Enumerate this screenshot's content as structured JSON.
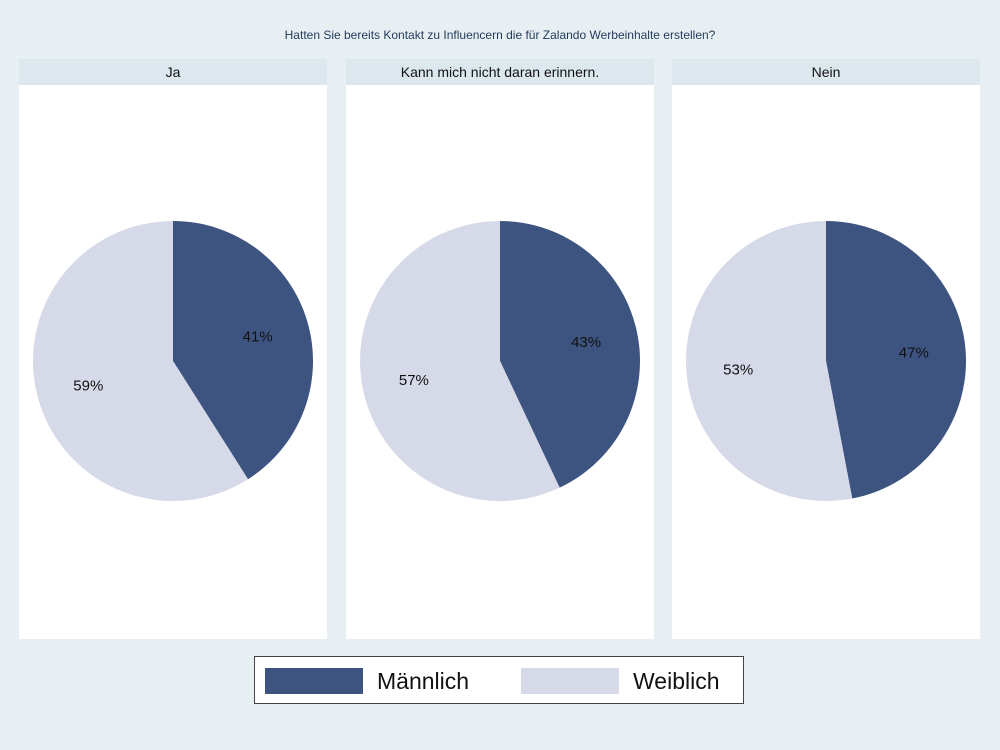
{
  "chart_data": {
    "type": "pie",
    "title": "Hatten Sie bereits Kontakt zu Influencern die für Zalando Werbeinhalte erstellen?",
    "legend": {
      "position": "bottom",
      "entries": [
        {
          "name": "Männlich",
          "color": "#3e5480"
        },
        {
          "name": "Weiblich",
          "color": "#d6dae8"
        }
      ]
    },
    "panels": [
      {
        "label": "Ja",
        "slices": [
          {
            "name": "Männlich",
            "value": 41,
            "label": "41%"
          },
          {
            "name": "Weiblich",
            "value": 59,
            "label": "59%"
          }
        ]
      },
      {
        "label": "Kann mich nicht daran erinnern.",
        "slices": [
          {
            "name": "Männlich",
            "value": 43,
            "label": "43%"
          },
          {
            "name": "Weiblich",
            "value": 57,
            "label": "57%"
          }
        ]
      },
      {
        "label": "Nein",
        "slices": [
          {
            "name": "Männlich",
            "value": 47,
            "label": "47%"
          },
          {
            "name": "Weiblich",
            "value": 53,
            "label": "53%"
          }
        ]
      }
    ]
  }
}
